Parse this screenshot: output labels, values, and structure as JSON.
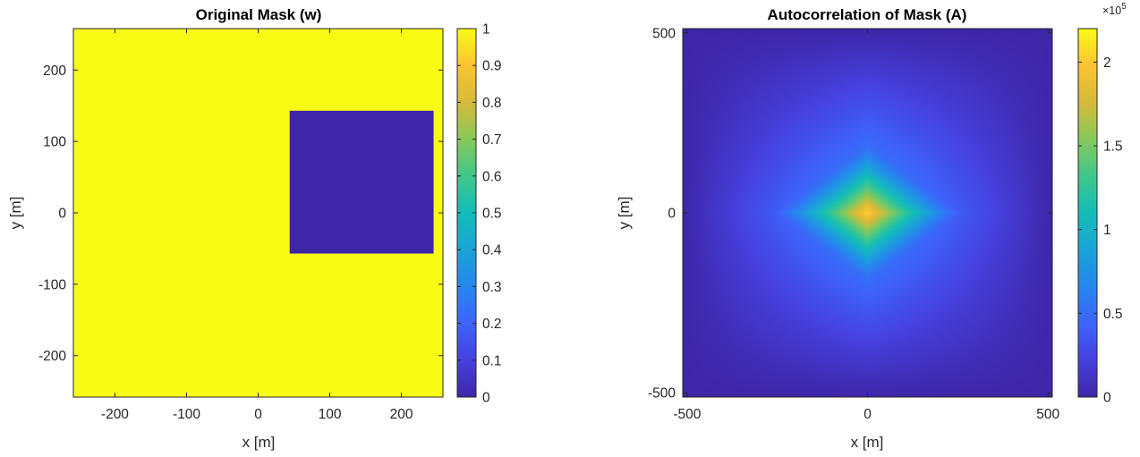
{
  "chart_data": [
    {
      "type": "heatmap",
      "title": "Original Mask (w)",
      "xlabel": "x [m]",
      "ylabel": "y [m]",
      "xlim": [
        -258,
        258
      ],
      "ylim": [
        -258,
        258
      ],
      "xticks": [
        -200,
        -100,
        0,
        100,
        200
      ],
      "xtick_labels": [
        "-200",
        "-100",
        "0",
        "100",
        "200"
      ],
      "yticks": [
        200,
        100,
        0,
        -100,
        -200
      ],
      "ytick_labels": [
        "200",
        "100",
        "0",
        "-100",
        "-200"
      ],
      "background_value": 1,
      "masked_rectangle": {
        "x_range": [
          44,
          245
        ],
        "y_range": [
          -57,
          143
        ],
        "value": 0
      },
      "colorbar": {
        "range": [
          0,
          1
        ],
        "ticks": [
          1,
          0.9,
          0.8,
          0.7,
          0.6,
          0.5,
          0.4,
          0.3,
          0.2,
          0.1,
          0
        ],
        "tick_labels": [
          "1",
          "0.9",
          "0.8",
          "0.7",
          "0.6",
          "0.5",
          "0.4",
          "0.3",
          "0.2",
          "0.1",
          "0"
        ]
      },
      "grid": false
    },
    {
      "type": "heatmap",
      "title": "Autocorrelation of Mask (A)",
      "xlabel": "x [m]",
      "ylabel": "y [m]",
      "xlim": [
        -512,
        512
      ],
      "ylim": [
        -512,
        512
      ],
      "xticks": [
        -500,
        0,
        500
      ],
      "xtick_labels": [
        "-500",
        "0",
        "500"
      ],
      "yticks": [
        500,
        0,
        -500
      ],
      "ytick_labels": [
        "500",
        "0",
        "-500"
      ],
      "peak_value": 220000,
      "peak_location": [
        0,
        0
      ],
      "colorbar": {
        "range": [
          0,
          2.2
        ],
        "multiplier_label": "×10",
        "multiplier_exponent": "5",
        "ticks": [
          2,
          1.5,
          1,
          0.5,
          0
        ],
        "tick_labels": [
          "2",
          "1.5",
          "1",
          "0.5",
          "0"
        ]
      },
      "grid": false
    }
  ],
  "colormap": "parula",
  "colors": {
    "low": "#3e26a8",
    "mid": "#13bdb8",
    "high": "#f9fb15"
  }
}
